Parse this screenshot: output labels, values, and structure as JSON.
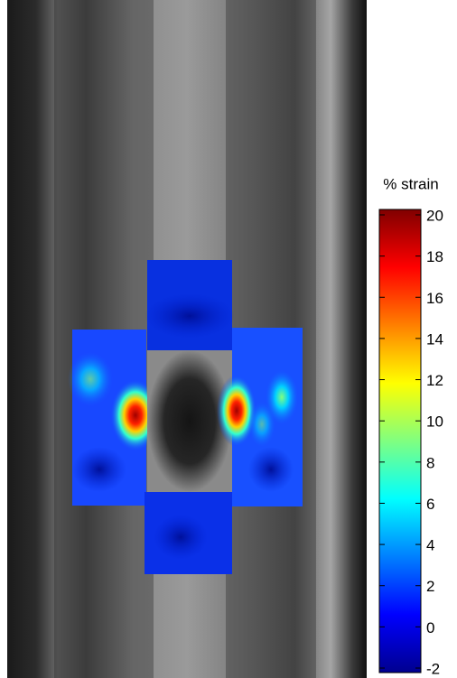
{
  "colorbar": {
    "title": "% strain",
    "lim": [
      -2,
      20
    ],
    "ticks": [
      -2,
      0,
      2,
      4,
      6,
      8,
      10,
      12,
      14,
      16,
      18,
      20
    ]
  }
}
